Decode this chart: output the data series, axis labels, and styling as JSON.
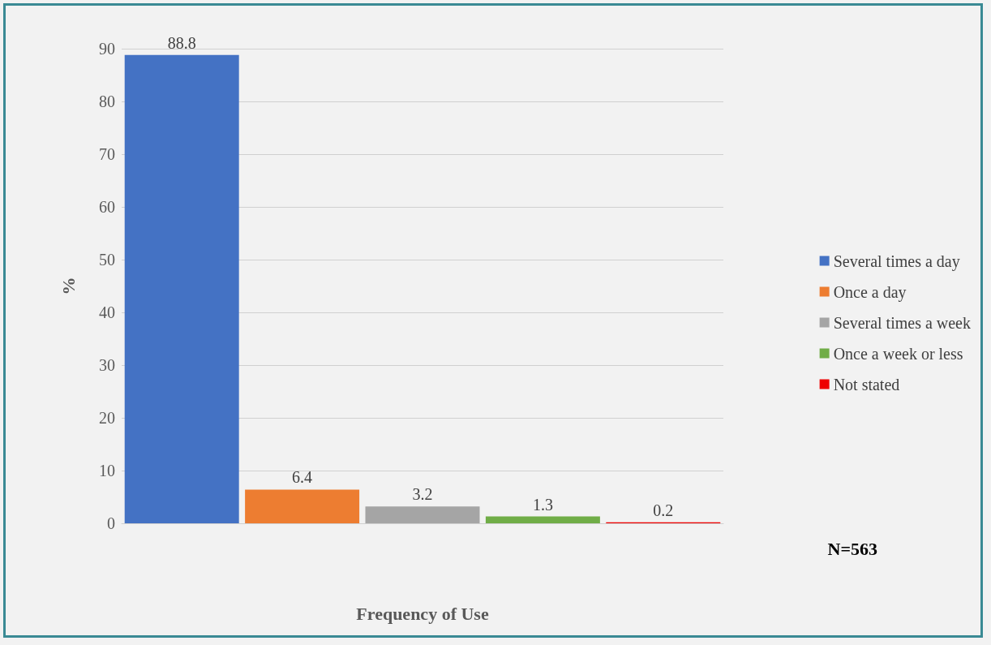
{
  "chart_data": {
    "type": "bar",
    "xlabel": "Frequency of Use",
    "ylabel": "%",
    "categories": [
      null,
      null,
      null,
      null,
      null
    ],
    "series": [
      {
        "name": "Several times a day",
        "color": "#4472c4",
        "values": [
          88.8,
          null,
          null,
          null,
          null
        ]
      },
      {
        "name": "Once a day",
        "color": "#ed7d31",
        "values": [
          null,
          6.4,
          null,
          null,
          null
        ]
      },
      {
        "name": "Several times a week",
        "color": "#a5a5a5",
        "values": [
          null,
          null,
          3.2,
          null,
          null
        ]
      },
      {
        "name": "Once a week or less",
        "color": "#70ad47",
        "values": [
          null,
          null,
          null,
          1.3,
          null
        ]
      },
      {
        "name": "Not stated",
        "color": "#ee0000",
        "values": [
          null,
          null,
          null,
          null,
          0.2
        ]
      }
    ],
    "ylim": [
      0,
      90
    ],
    "yticks": [
      0,
      10,
      20,
      30,
      40,
      50,
      60,
      70,
      80,
      90
    ],
    "grid": "y",
    "legend": "right",
    "data_labels": true,
    "annotations": [
      "N=563"
    ]
  }
}
